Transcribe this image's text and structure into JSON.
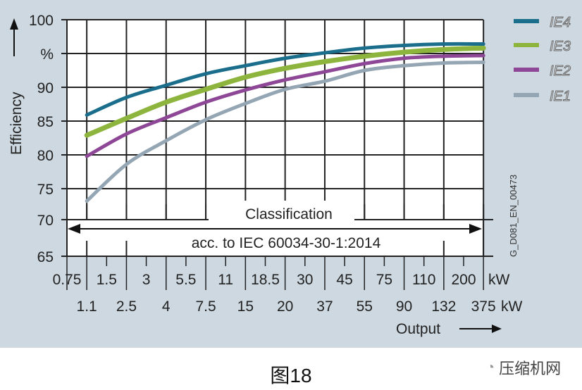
{
  "chart_data": {
    "type": "line",
    "ylabel": "Efficiency",
    "yunit": "%",
    "xlabel": "Output",
    "yticks": [
      100,
      95,
      90,
      85,
      80,
      75,
      70,
      65
    ],
    "ytick_labels": [
      "100",
      "%",
      "90",
      "85",
      "80",
      "75",
      "70",
      "65"
    ],
    "ylim": [
      65,
      100
    ],
    "x_top_labels": [
      "0.75",
      "1.5",
      "3",
      "5.5",
      "11",
      "18.5",
      "30",
      "45",
      "75",
      "110",
      "200",
      "kW"
    ],
    "x_bottom_labels": [
      "1.1",
      "2.5",
      "4",
      "7.5",
      "15",
      "20",
      "37",
      "55",
      "90",
      "132",
      "375",
      "kW"
    ],
    "x": [
      1.1,
      2.5,
      4,
      7.5,
      15,
      20,
      37,
      55,
      90,
      132,
      375
    ],
    "grid": true,
    "legend_position": "right",
    "series": [
      {
        "name": "IE4",
        "color": "#1a6e8c",
        "values": [
          85.9,
          88.5,
          90.3,
          92.0,
          93.2,
          94.3,
          95.1,
          95.8,
          96.2,
          96.4,
          96.4
        ]
      },
      {
        "name": "IE3",
        "color": "#8db53e",
        "values": [
          82.9,
          85.4,
          87.8,
          89.7,
          91.5,
          92.8,
          93.8,
          94.6,
          95.2,
          95.6,
          95.8
        ]
      },
      {
        "name": "IE2",
        "color": "#8e4796",
        "values": [
          79.8,
          83.1,
          85.5,
          87.8,
          89.6,
          91.1,
          92.3,
          93.5,
          94.3,
          94.6,
          94.7
        ]
      },
      {
        "name": "IE1",
        "color": "#94a6b3",
        "values": [
          73.0,
          78.6,
          82.1,
          85.2,
          87.6,
          89.7,
          90.9,
          92.5,
          93.2,
          93.6,
          93.7
        ]
      }
    ],
    "annotation_title": "Classification",
    "annotation_text": "acc. to IEC 60034-30-1:2014",
    "code": "G_D081_EN_00473"
  },
  "caption": "图18",
  "watermark": "压缩机网"
}
